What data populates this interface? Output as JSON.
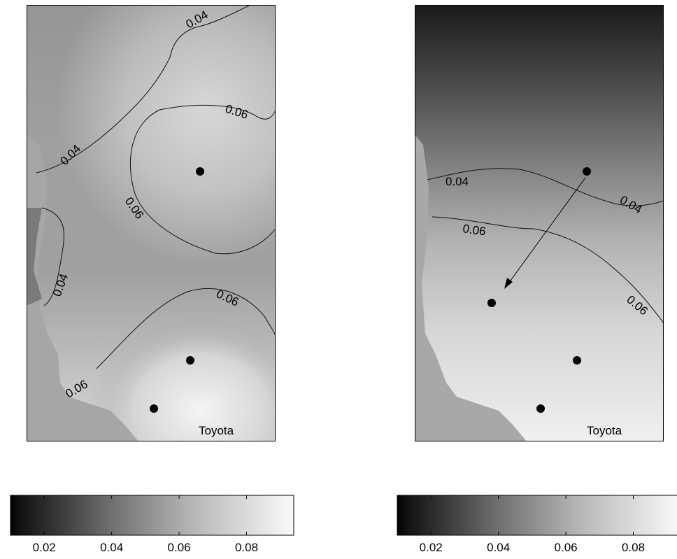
{
  "maps": [
    {
      "label": "Toyota",
      "contour_labels": [
        "0.04",
        "0.06",
        "0.04",
        "0.06",
        "0.04",
        "0.06",
        "0.06"
      ],
      "colorbar_ticks": [
        "0.02",
        "0.04",
        "0.06",
        "0.08"
      ]
    },
    {
      "label": "Toyota",
      "contour_labels": [
        "0.04",
        "0.04",
        "0.06",
        "0.06"
      ],
      "colorbar_ticks": [
        "0.02",
        "0.04",
        "0.06",
        "0.08"
      ]
    }
  ],
  "colorbar_range": [
    0.01,
    0.094
  ]
}
